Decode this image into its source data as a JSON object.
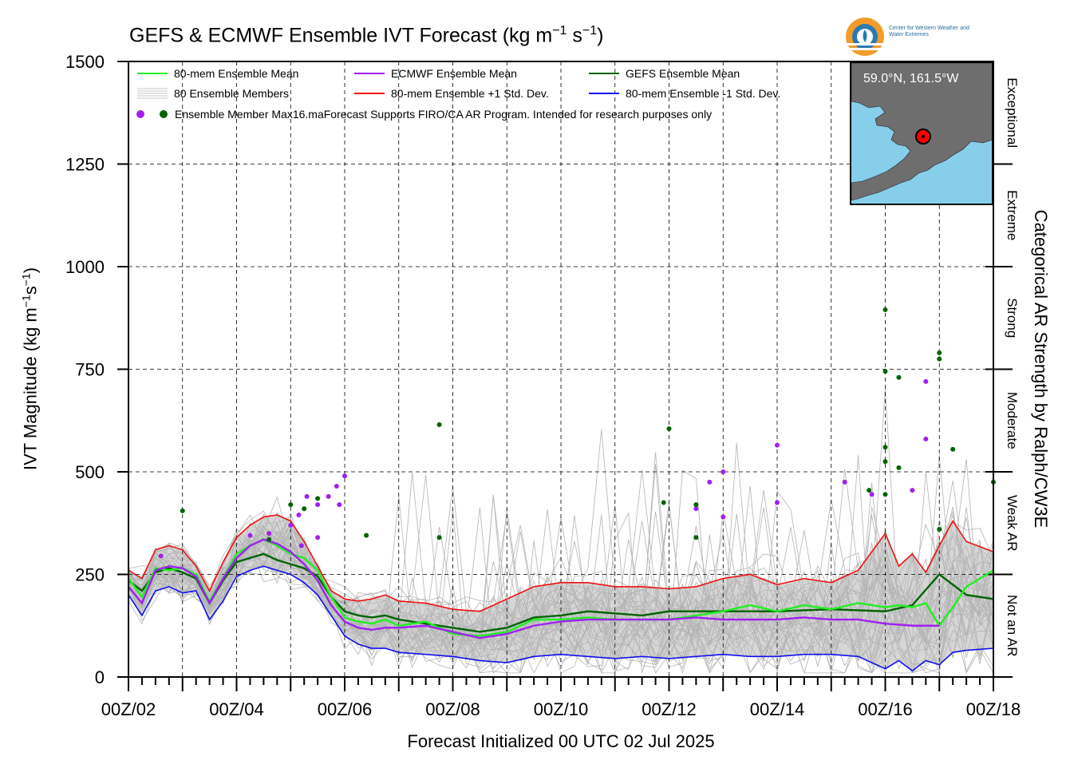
{
  "title": {
    "prefix": "GEFS & ECMWF Ensemble IVT Forecast (kg m",
    "sup1": "−1",
    "mid": " s",
    "sup2": "−1",
    "suffix": ")"
  },
  "ylabel": {
    "prefix": "IVT Magnitude (kg m",
    "sup1": "−1",
    "mid": "s",
    "sup2": "−1",
    "suffix": ")"
  },
  "xlabel": "Forecast Initialized 00 UTC 02 Jul 2025",
  "right_label": "Categorical AR Strength by Ralph/CW3E",
  "logo_text": "Center for Western Weather and Water Extremes",
  "inset_label": "59.0°N, 161.5°W",
  "colors": {
    "mean80": "#22ee22",
    "ecmwf": "#a020f0",
    "gefs": "#006400",
    "plus1": "#ee1111",
    "minus1": "#1010ee",
    "members": "#b4b4b4",
    "spread": "#d6d6d6",
    "ocean": "#87ceeb",
    "land": "#6e6e6e"
  },
  "chart_data": {
    "type": "line",
    "title": "GEFS & ECMWF Ensemble IVT Forecast (kg m−1 s−1)",
    "xlabel": "Forecast Initialized 00 UTC 02 Jul 2025",
    "ylabel": "IVT Magnitude (kg m−1s−1)",
    "ylim": [
      0,
      1500
    ],
    "yticks": [
      0,
      250,
      500,
      750,
      1000,
      1250,
      1500
    ],
    "xlim_days": [
      2,
      18
    ],
    "xtick_labels": [
      "00Z/02",
      "00Z/04",
      "00Z/06",
      "00Z/08",
      "00Z/10",
      "00Z/12",
      "00Z/14",
      "00Z/16",
      "00Z/18"
    ],
    "grid": true,
    "legend_placement": "top-left",
    "legend": [
      {
        "label": "80-mem Ensemble Mean",
        "color_key": "mean80"
      },
      {
        "label": "ECMWF Ensemble Mean",
        "color_key": "ecmwf"
      },
      {
        "label": "GEFS Ensemble Mean",
        "color_key": "gefs"
      },
      {
        "label": "80 Ensemble Members",
        "color_key": "members"
      },
      {
        "label": "80-mem Ensemble +1 Std. Dev.",
        "color_key": "plus1"
      },
      {
        "label": "80-mem Ensemble -1 Std. Dev.",
        "color_key": "minus1"
      }
    ],
    "legend_note": "Ensemble Member Max16.maForecast Supports FIRO/CA AR Program. Intended for research purposes only",
    "categories_right": [
      {
        "label": "Exceptional",
        "range": [
          1250,
          1500
        ]
      },
      {
        "label": "Extreme",
        "range": [
          1000,
          1250
        ]
      },
      {
        "label": "Strong",
        "range": [
          750,
          1000
        ]
      },
      {
        "label": "Moderate",
        "range": [
          500,
          750
        ]
      },
      {
        "label": "Weak AR",
        "range": [
          250,
          500
        ]
      },
      {
        "label": "Not an AR",
        "range": [
          0,
          250
        ]
      }
    ],
    "series": [
      {
        "name": "80-mem Ensemble Mean",
        "color_key": "mean80",
        "x": [
          2,
          2.25,
          2.5,
          2.75,
          3,
          3.25,
          3.5,
          3.75,
          4,
          4.25,
          4.5,
          4.75,
          5,
          5.25,
          5.5,
          5.75,
          6,
          6.25,
          6.5,
          6.75,
          7,
          7.5,
          8,
          8.5,
          9,
          9.5,
          10,
          10.5,
          11,
          11.5,
          12,
          12.5,
          13,
          13.5,
          14,
          14.5,
          15,
          15.5,
          16,
          16.25,
          16.5,
          16.75,
          17,
          17.25,
          17.5,
          18
        ],
        "y": [
          240,
          195,
          265,
          260,
          265,
          250,
          185,
          240,
          300,
          320,
          335,
          320,
          300,
          290,
          260,
          195,
          145,
          135,
          130,
          140,
          125,
          135,
          105,
          100,
          110,
          140,
          140,
          145,
          140,
          140,
          140,
          150,
          160,
          175,
          160,
          175,
          165,
          180,
          170,
          175,
          170,
          180,
          125,
          170,
          220,
          260
        ]
      },
      {
        "name": "ECMWF Ensemble Mean",
        "color_key": "ecmwf",
        "x": [
          2,
          2.25,
          2.5,
          2.75,
          3,
          3.25,
          3.5,
          3.75,
          4,
          4.25,
          4.5,
          4.75,
          5,
          5.25,
          5.5,
          5.75,
          6,
          6.25,
          6.5,
          6.75,
          7,
          7.5,
          8,
          8.5,
          9,
          9.5,
          10,
          10.5,
          11,
          11.5,
          12,
          12.5,
          13,
          13.5,
          14,
          14.5,
          15,
          15.5,
          16,
          16.5,
          17
        ],
        "y": [
          220,
          180,
          260,
          270,
          265,
          245,
          180,
          240,
          290,
          320,
          335,
          325,
          305,
          275,
          235,
          175,
          135,
          120,
          115,
          120,
          120,
          125,
          110,
          95,
          105,
          125,
          135,
          140,
          140,
          140,
          140,
          145,
          140,
          140,
          140,
          145,
          140,
          140,
          130,
          125,
          125
        ]
      },
      {
        "name": "GEFS Ensemble Mean",
        "color_key": "gefs",
        "x": [
          2,
          2.25,
          2.5,
          2.75,
          3,
          3.25,
          3.5,
          3.75,
          4,
          4.25,
          4.5,
          4.75,
          5,
          5.25,
          5.5,
          5.75,
          6,
          6.25,
          6.5,
          6.75,
          7,
          7.5,
          8,
          8.5,
          9,
          9.5,
          10,
          10.5,
          11,
          11.5,
          12,
          13,
          14,
          15,
          16,
          16.5,
          17,
          17.5,
          18
        ],
        "y": [
          235,
          210,
          255,
          265,
          255,
          240,
          180,
          235,
          280,
          290,
          300,
          285,
          275,
          265,
          245,
          195,
          160,
          150,
          145,
          150,
          140,
          130,
          120,
          110,
          120,
          145,
          150,
          160,
          155,
          150,
          160,
          160,
          160,
          165,
          160,
          175,
          250,
          200,
          190
        ]
      },
      {
        "name": "80-mem Ensemble +1 Std. Dev.",
        "color_key": "plus1",
        "x": [
          2,
          2.25,
          2.5,
          2.75,
          3,
          3.25,
          3.5,
          3.75,
          4,
          4.25,
          4.5,
          4.75,
          5,
          5.25,
          5.5,
          5.75,
          6,
          6.25,
          6.5,
          6.75,
          7,
          7.5,
          8,
          8.5,
          9,
          9.5,
          10,
          10.5,
          11,
          11.5,
          12,
          12.5,
          13,
          13.5,
          14,
          14.5,
          15,
          15.5,
          16,
          16.25,
          16.5,
          16.75,
          17,
          17.25,
          17.5,
          18
        ],
        "y": [
          260,
          240,
          310,
          320,
          310,
          270,
          210,
          280,
          340,
          370,
          390,
          395,
          380,
          330,
          270,
          210,
          190,
          185,
          190,
          200,
          185,
          180,
          165,
          160,
          190,
          220,
          230,
          230,
          220,
          220,
          215,
          220,
          240,
          250,
          225,
          240,
          230,
          260,
          350,
          270,
          300,
          255,
          320,
          380,
          330,
          305
        ]
      },
      {
        "name": "80-mem Ensemble -1 Std. Dev.",
        "color_key": "minus1",
        "x": [
          2,
          2.25,
          2.5,
          2.75,
          3,
          3.25,
          3.5,
          3.75,
          4,
          4.25,
          4.5,
          4.75,
          5,
          5.25,
          5.5,
          5.75,
          6,
          6.25,
          6.5,
          6.75,
          7,
          7.5,
          8,
          8.5,
          9,
          9.5,
          10,
          10.5,
          11,
          11.5,
          12,
          12.5,
          13,
          13.5,
          14,
          14.5,
          15,
          15.5,
          16,
          16.25,
          16.5,
          16.75,
          17,
          17.25,
          17.5,
          18
        ],
        "y": [
          200,
          150,
          210,
          220,
          205,
          210,
          140,
          185,
          245,
          260,
          270,
          260,
          250,
          230,
          200,
          150,
          100,
          80,
          70,
          70,
          60,
          55,
          50,
          40,
          35,
          50,
          55,
          50,
          45,
          50,
          45,
          50,
          55,
          50,
          50,
          55,
          55,
          50,
          20,
          40,
          15,
          40,
          30,
          60,
          65,
          70
        ]
      }
    ],
    "max_points_ecmwf": [
      {
        "x": 2.6,
        "y": 295
      },
      {
        "x": 4.25,
        "y": 345
      },
      {
        "x": 4.6,
        "y": 350
      },
      {
        "x": 5.0,
        "y": 370
      },
      {
        "x": 5.15,
        "y": 395
      },
      {
        "x": 5.3,
        "y": 440
      },
      {
        "x": 5.5,
        "y": 420
      },
      {
        "x": 5.7,
        "y": 440
      },
      {
        "x": 5.85,
        "y": 465
      },
      {
        "x": 6.0,
        "y": 490
      },
      {
        "x": 5.9,
        "y": 420
      },
      {
        "x": 5.5,
        "y": 340
      },
      {
        "x": 5.2,
        "y": 320
      },
      {
        "x": 12.5,
        "y": 410
      },
      {
        "x": 12.75,
        "y": 475
      },
      {
        "x": 13.0,
        "y": 500
      },
      {
        "x": 13.0,
        "y": 390
      },
      {
        "x": 14.0,
        "y": 565
      },
      {
        "x": 14.0,
        "y": 425
      },
      {
        "x": 15.25,
        "y": 475
      },
      {
        "x": 15.75,
        "y": 445
      },
      {
        "x": 16.75,
        "y": 720
      },
      {
        "x": 16.75,
        "y": 580
      },
      {
        "x": 16.5,
        "y": 455
      }
    ],
    "max_points_gefs": [
      {
        "x": 3.0,
        "y": 405
      },
      {
        "x": 4.6,
        "y": 335
      },
      {
        "x": 5.0,
        "y": 420
      },
      {
        "x": 5.25,
        "y": 410
      },
      {
        "x": 5.5,
        "y": 435
      },
      {
        "x": 6.4,
        "y": 345
      },
      {
        "x": 7.75,
        "y": 615
      },
      {
        "x": 7.75,
        "y": 340
      },
      {
        "x": 11.9,
        "y": 425
      },
      {
        "x": 12.0,
        "y": 605
      },
      {
        "x": 12.5,
        "y": 420
      },
      {
        "x": 12.5,
        "y": 340
      },
      {
        "x": 15.7,
        "y": 455
      },
      {
        "x": 16.0,
        "y": 895
      },
      {
        "x": 16.0,
        "y": 745
      },
      {
        "x": 16.0,
        "y": 560
      },
      {
        "x": 16.0,
        "y": 525
      },
      {
        "x": 16.0,
        "y": 445
      },
      {
        "x": 16.25,
        "y": 730
      },
      {
        "x": 16.25,
        "y": 510
      },
      {
        "x": 17.0,
        "y": 790
      },
      {
        "x": 17.0,
        "y": 775
      },
      {
        "x": 17.0,
        "y": 360
      },
      {
        "x": 17.25,
        "y": 555
      },
      {
        "x": 18.0,
        "y": 475
      }
    ]
  }
}
